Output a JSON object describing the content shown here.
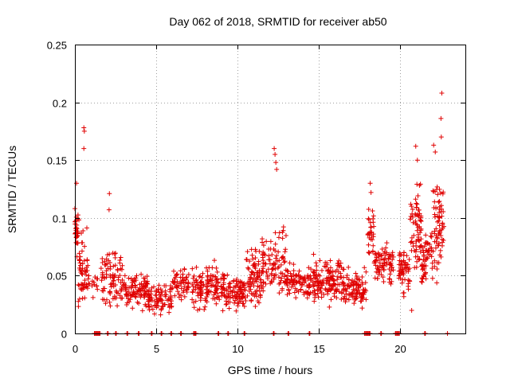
{
  "chart_data": {
    "type": "scatter",
    "title": "Day 062 of 2018, SRMTID for receiver ab50",
    "xlabel": "GPS time / hours",
    "ylabel": "SRMTID / TECUs",
    "xlim": [
      0,
      24
    ],
    "ylim": [
      0,
      0.25
    ],
    "x_ticks": [
      0,
      5,
      10,
      15,
      20
    ],
    "x_tick_labels": [
      "0",
      "5",
      "10",
      "15",
      "20"
    ],
    "y_ticks": [
      0,
      0.05,
      0.1,
      0.15,
      0.2,
      0.25
    ],
    "y_tick_labels": [
      "0",
      "0.05",
      "0.1",
      "0.15",
      "0.2",
      "0.25"
    ],
    "grid": true,
    "marker": "+",
    "series_color": "#e00000",
    "series": [
      {
        "name": "SRMTID",
        "segments": [
          {
            "x0": 0.0,
            "x1": 0.2,
            "base": 0.09,
            "spread": 0.016,
            "n": 28
          },
          {
            "x0": 0.2,
            "x1": 0.8,
            "base": 0.055,
            "spread": 0.032,
            "n": 55
          },
          {
            "x0": 0.8,
            "x1": 1.4,
            "base": 0.045,
            "spread": 0.012,
            "n": 15
          },
          {
            "x0": 1.6,
            "x1": 3.0,
            "base": 0.048,
            "spread": 0.022,
            "n": 90
          },
          {
            "x0": 3.0,
            "x1": 4.5,
            "base": 0.037,
            "spread": 0.013,
            "n": 100
          },
          {
            "x0": 4.5,
            "x1": 6.0,
            "base": 0.03,
            "spread": 0.012,
            "n": 90
          },
          {
            "x0": 6.0,
            "x1": 7.0,
            "base": 0.042,
            "spread": 0.012,
            "n": 55
          },
          {
            "x0": 7.2,
            "x1": 9.2,
            "base": 0.04,
            "spread": 0.016,
            "n": 140
          },
          {
            "x0": 9.2,
            "x1": 10.5,
            "base": 0.034,
            "spread": 0.013,
            "n": 90
          },
          {
            "x0": 10.5,
            "x1": 11.5,
            "base": 0.048,
            "spread": 0.022,
            "n": 80
          },
          {
            "x0": 11.5,
            "x1": 13.0,
            "base": 0.06,
            "spread": 0.028,
            "n": 100
          },
          {
            "x0": 13.0,
            "x1": 14.6,
            "base": 0.043,
            "spread": 0.014,
            "n": 90
          },
          {
            "x0": 14.6,
            "x1": 16.5,
            "base": 0.045,
            "spread": 0.016,
            "n": 140
          },
          {
            "x0": 16.5,
            "x1": 17.9,
            "base": 0.038,
            "spread": 0.015,
            "n": 100
          },
          {
            "x0": 18.0,
            "x1": 18.4,
            "base": 0.085,
            "spread": 0.018,
            "n": 30
          },
          {
            "x0": 18.4,
            "x1": 19.6,
            "base": 0.06,
            "spread": 0.016,
            "n": 80
          },
          {
            "x0": 19.9,
            "x1": 20.6,
            "base": 0.055,
            "spread": 0.018,
            "n": 60
          },
          {
            "x0": 20.6,
            "x1": 21.3,
            "base": 0.09,
            "spread": 0.035,
            "n": 70
          },
          {
            "x0": 21.3,
            "x1": 22.0,
            "base": 0.065,
            "spread": 0.022,
            "n": 55
          },
          {
            "x0": 22.0,
            "x1": 22.7,
            "base": 0.09,
            "spread": 0.038,
            "n": 70
          }
        ],
        "notable_points": [
          {
            "x": 0.55,
            "y": 0.178
          },
          {
            "x": 0.58,
            "y": 0.175
          },
          {
            "x": 0.55,
            "y": 0.16
          },
          {
            "x": 0.1,
            "y": 0.13
          },
          {
            "x": 2.12,
            "y": 0.121
          },
          {
            "x": 2.1,
            "y": 0.107
          },
          {
            "x": 12.25,
            "y": 0.16
          },
          {
            "x": 12.3,
            "y": 0.155
          },
          {
            "x": 12.35,
            "y": 0.148
          },
          {
            "x": 12.4,
            "y": 0.142
          },
          {
            "x": 18.15,
            "y": 0.13
          },
          {
            "x": 18.2,
            "y": 0.122
          },
          {
            "x": 20.95,
            "y": 0.162
          },
          {
            "x": 21.05,
            "y": 0.15
          },
          {
            "x": 22.05,
            "y": 0.163
          },
          {
            "x": 22.15,
            "y": 0.157
          },
          {
            "x": 22.55,
            "y": 0.208
          },
          {
            "x": 22.5,
            "y": 0.186
          },
          {
            "x": 22.52,
            "y": 0.17
          },
          {
            "x": 0.0,
            "y": 0.108
          },
          {
            "x": 20.7,
            "y": 0.02
          },
          {
            "x": 22.9,
            "y": 0.0
          }
        ],
        "zero_points_x": [
          1.2,
          1.3,
          1.4,
          1.5,
          2.0,
          2.5,
          3.2,
          3.9,
          4.7,
          5.3,
          5.9,
          6.5,
          7.3,
          7.4,
          8.8,
          9.4,
          10.4,
          12.2,
          13.1,
          14.4,
          17.8,
          17.9,
          18.0,
          18.1,
          18.8,
          19.7,
          19.8,
          19.9,
          21.5
        ]
      }
    ]
  }
}
